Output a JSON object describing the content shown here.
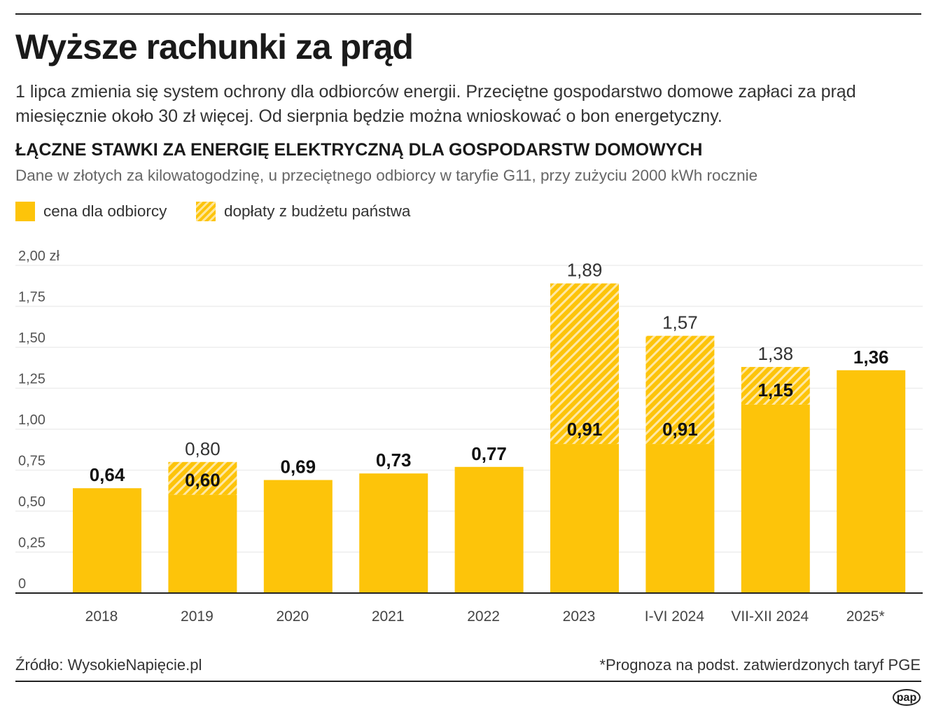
{
  "header": {
    "title": "Wyższe rachunki za prąd",
    "lead": "1 lipca zmienia się system ochrony dla odbiorców energii. Przeciętne gospodarstwo domowe zapłaci za prąd miesięcznie około 30 zł więcej. Od sierpnia będzie można wnioskować o bon energetyczny."
  },
  "chart_data": {
    "type": "bar",
    "stacked": true,
    "title": "ŁĄCZNE STAWKI ZA ENERGIĘ ELEKTRYCZNĄ DLA GOSPODARSTW DOMOWYCH",
    "subtitle": "Dane w złotych za kilowatogodzinę, u przeciętnego odbiorcy w taryfie G11, przy zużyciu 2000 kWh rocznie",
    "categories": [
      "2018",
      "2019",
      "2020",
      "2021",
      "2022",
      "2023",
      "I-VI 2024",
      "VII-XII 2024",
      "2025*"
    ],
    "series": [
      {
        "name": "cena dla odbiorcy",
        "values": [
          0.64,
          0.6,
          0.69,
          0.73,
          0.77,
          0.91,
          0.91,
          1.15,
          1.36
        ],
        "labels": [
          "0,64",
          "0,60",
          "0,69",
          "0,73",
          "0,77",
          "0,91",
          "0,91",
          "1,15",
          "1,36"
        ],
        "color": "#FDC40A"
      },
      {
        "name": "dopłaty z budżetu państwa",
        "values": [
          0,
          0.2,
          0,
          0,
          0,
          0.98,
          0.66,
          0.23,
          0
        ],
        "color": "#FDC40A",
        "pattern": "hatched"
      }
    ],
    "totals": [
      0.64,
      0.8,
      0.69,
      0.73,
      0.77,
      1.89,
      1.57,
      1.38,
      1.36
    ],
    "total_labels": [
      "",
      "0,80",
      "",
      "",
      "",
      "1,89",
      "1,57",
      "1,38",
      ""
    ],
    "yticks": [
      "0",
      "0,25",
      "0,50",
      "0,75",
      "1,00",
      "1,25",
      "1,50",
      "1,75",
      "2,00 zł"
    ],
    "ylim": [
      0,
      2.0
    ],
    "grid": true,
    "legend": "top-left"
  },
  "footer": {
    "source": "Źródło: WysokieNapięcie.pl",
    "note": "*Prognoza na podst. zatwierdzonych taryf PGE",
    "logo": "pap"
  }
}
